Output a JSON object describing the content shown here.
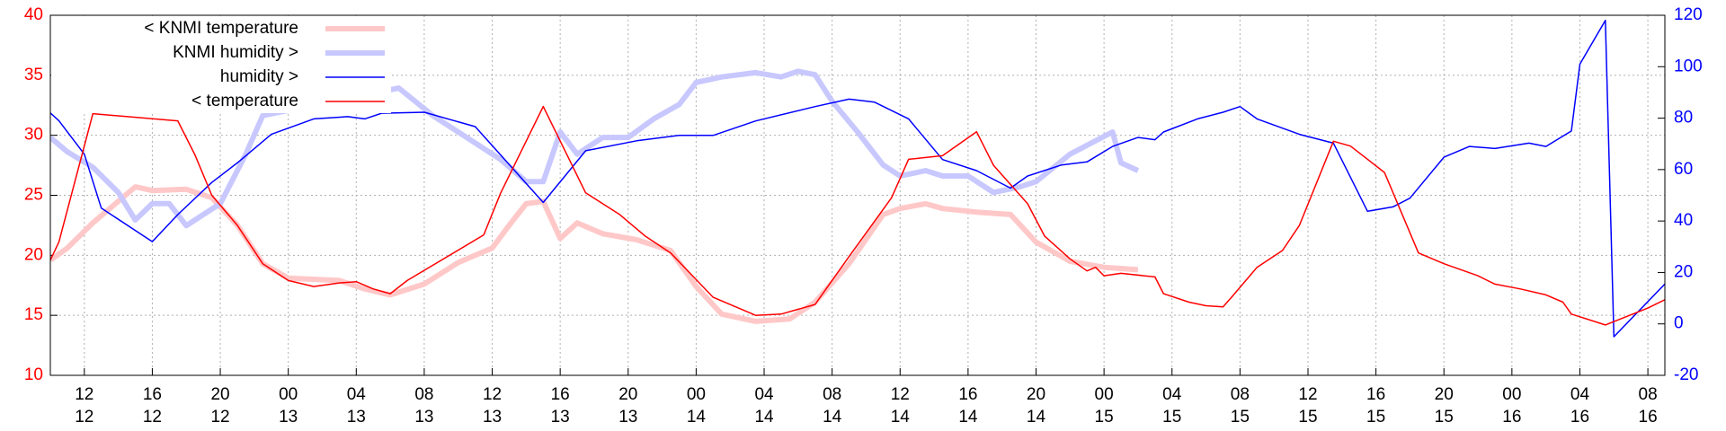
{
  "chart_data": {
    "type": "line",
    "grid": true,
    "legend": "top-left",
    "ycolor": "#ff0000",
    "y2color": "#0000ff",
    "xlim": [
      "12 10:00",
      "16 09:00"
    ],
    "xticks": [
      {
        "value": "12 12:00",
        "label": "12\n12"
      },
      {
        "value": "12 16:00",
        "label": "16\n12"
      },
      {
        "value": "12 20:00",
        "label": "20\n12"
      },
      {
        "value": "13 00:00",
        "label": "00\n13"
      },
      {
        "value": "13 04:00",
        "label": "04\n13"
      },
      {
        "value": "13 08:00",
        "label": "08\n13"
      },
      {
        "value": "13 12:00",
        "label": "12\n13"
      },
      {
        "value": "13 16:00",
        "label": "16\n13"
      },
      {
        "value": "13 20:00",
        "label": "20\n13"
      },
      {
        "value": "14 00:00",
        "label": "00\n14"
      },
      {
        "value": "14 04:00",
        "label": "04\n14"
      },
      {
        "value": "14 08:00",
        "label": "08\n14"
      },
      {
        "value": "14 12:00",
        "label": "12\n14"
      },
      {
        "value": "14 16:00",
        "label": "16\n14"
      },
      {
        "value": "14 20:00",
        "label": "20\n14"
      },
      {
        "value": "15 00:00",
        "label": "00\n15"
      },
      {
        "value": "15 04:00",
        "label": "04\n15"
      },
      {
        "value": "15 08:00",
        "label": "08\n15"
      },
      {
        "value": "15 12:00",
        "label": "12\n15"
      },
      {
        "value": "15 16:00",
        "label": "16\n15"
      },
      {
        "value": "15 20:00",
        "label": "20\n15"
      },
      {
        "value": "16 00:00",
        "label": "00\n16"
      },
      {
        "value": "16 04:00",
        "label": "04\n16"
      },
      {
        "value": "16 08:00",
        "label": "08\n16"
      }
    ],
    "ylim": [
      10,
      40
    ],
    "yticks": [
      10,
      15,
      20,
      25,
      30,
      35,
      40
    ],
    "y2lim": [
      -20,
      120
    ],
    "y2ticks": [
      -20,
      0,
      20,
      40,
      60,
      80,
      100,
      120
    ],
    "series": [
      {
        "name": "< KNMI temperature",
        "color": "#ffc8c8",
        "width": 6,
        "x": [
          "12 10:00",
          "12 11:00",
          "12 12:30",
          "12 13:30",
          "12 15:00",
          "12 16:00",
          "12 18:00",
          "12 19:30",
          "12 21:00",
          "12 22:30",
          "13 00:00",
          "13 03:00",
          "13 04:30",
          "13 06:00",
          "13 08:00",
          "13 10:00",
          "13 12:00",
          "13 13:00",
          "13 14:00",
          "13 15:00",
          "13 16:00",
          "13 17:00",
          "13 18:30",
          "13 20:30",
          "13 22:30",
          "14 00:00",
          "14 01:30",
          "14 03:30",
          "14 05:30",
          "14 07:00",
          "14 09:00",
          "14 11:00",
          "14 12:00",
          "14 13:30",
          "14 14:30",
          "14 16:30",
          "14 18:30",
          "14 20:00",
          "14 22:00",
          "15 00:00",
          "15 02:00"
        ],
        "values": [
          19.6,
          20.6,
          22.7,
          23.9,
          25.7,
          25.4,
          25.5,
          24.8,
          22.5,
          19.3,
          18.1,
          17.9,
          17.2,
          16.7,
          17.6,
          19.4,
          20.6,
          22.5,
          24.3,
          24.5,
          21.4,
          22.7,
          21.8,
          21.3,
          20.4,
          17.4,
          15.1,
          14.5,
          14.7,
          16.1,
          19.3,
          23.4,
          23.9,
          24.3,
          23.9,
          23.6,
          23.4,
          21.1,
          19.5,
          19.0,
          18.8
        ]
      },
      {
        "name": "KNMI humidity >",
        "color": "#c8c8ff",
        "width": 6,
        "axis": "y2",
        "x": [
          "12 10:00",
          "12 11:00",
          "12 12:30",
          "12 14:00",
          "12 15:00",
          "12 16:00",
          "12 17:00",
          "12 18:00",
          "12 20:00",
          "12 21:30",
          "12 22:30",
          "13 06:30",
          "13 08:30",
          "13 10:30",
          "13 12:30",
          "13 14:00",
          "13 15:00",
          "13 16:00",
          "13 17:00",
          "13 18:30",
          "13 20:00",
          "13 21:30",
          "13 23:00",
          "14 00:00",
          "14 01:30",
          "14 03:30",
          "14 05:00",
          "14 06:00",
          "14 07:00",
          "14 08:00",
          "14 09:30",
          "14 11:00",
          "14 12:00",
          "14 13:30",
          "14 14:30",
          "14 16:00",
          "14 17:30",
          "14 19:00",
          "14 20:00",
          "14 22:00",
          "14 23:30",
          "15 00:30",
          "15 01:00",
          "15 02:00"
        ],
        "values": [
          72.5,
          66.9,
          60.9,
          51.1,
          40.4,
          46.8,
          46.8,
          38.2,
          46.8,
          66,
          81,
          91.7,
          81,
          72.5,
          63.9,
          55.3,
          55.3,
          74.6,
          66,
          72.5,
          72.5,
          79.7,
          85.3,
          93.9,
          96,
          97.7,
          96,
          98.2,
          96.9,
          86.6,
          74.6,
          61.8,
          57.5,
          59.6,
          57.5,
          57.5,
          51.1,
          53.2,
          55.3,
          66,
          71.2,
          74.6,
          62.6,
          59.6
        ]
      },
      {
        "name": "humidity >",
        "color": "#0000ff",
        "width": 1.5,
        "axis": "y2",
        "x": [
          "12 10:00",
          "12 10:30",
          "12 12:00",
          "12 13:00",
          "12 16:00",
          "12 17:30",
          "12 19:30",
          "12 21:00",
          "12 23:00",
          "13 01:30",
          "13 03:30",
          "13 04:30",
          "13 05:30",
          "13 08:00",
          "13 11:00",
          "13 15:00",
          "13 17:30",
          "13 20:30",
          "13 23:00",
          "14 01:00",
          "14 03:30",
          "14 07:00",
          "14 09:00",
          "14 10:30",
          "14 12:30",
          "14 14:30",
          "14 16:30",
          "14 18:30",
          "14 19:30",
          "14 21:30",
          "14 23:00",
          "15 00:30",
          "15 02:00",
          "15 03:00",
          "15 03:30",
          "15 05:30",
          "15 07:00",
          "15 08:00",
          "15 09:00",
          "15 11:30",
          "15 13:30",
          "15 15:30",
          "15 17:00",
          "15 18:00",
          "15 20:00",
          "15 21:30",
          "15 23:00",
          "16 01:00",
          "16 02:00",
          "16 03:30",
          "16 04:00",
          "16 05:30",
          "16 06:00",
          "16 09:00"
        ],
        "values": [
          82,
          79,
          66,
          45,
          32,
          42.5,
          55,
          62.6,
          73.7,
          79.7,
          80.6,
          79.7,
          81.9,
          82.3,
          76.7,
          47.2,
          67.3,
          71.2,
          73.3,
          73.3,
          78.9,
          84.5,
          87.4,
          86.2,
          79.7,
          63.9,
          59.6,
          52.8,
          57.5,
          61.8,
          63,
          69,
          72.5,
          71.6,
          74.6,
          79.7,
          82.3,
          84.5,
          79.7,
          73.7,
          70.3,
          43.8,
          45.5,
          48.9,
          64.8,
          69,
          68.2,
          70.3,
          69,
          75,
          101,
          118,
          -5,
          15.5
        ]
      },
      {
        "name": "< temperature",
        "color": "#ff0000",
        "width": 1.5,
        "x": [
          "12 10:00",
          "12 10:30",
          "12 12:30",
          "12 17:30",
          "12 18:30",
          "12 19:30",
          "12 21:00",
          "12 22:30",
          "13 00:00",
          "13 01:30",
          "13 03:00",
          "13 04:00",
          "13 05:00",
          "13 06:00",
          "13 07:00",
          "13 11:30",
          "13 12:30",
          "13 15:00",
          "13 17:30",
          "13 19:30",
          "13 21:00",
          "13 22:30",
          "14 01:00",
          "14 03:30",
          "14 05:00",
          "14 07:00",
          "14 09:00",
          "14 11:30",
          "14 12:30",
          "14 14:30",
          "14 16:30",
          "14 17:30",
          "14 19:30",
          "14 20:30",
          "14 22:00",
          "14 23:00",
          "14 23:30",
          "15 00:00",
          "15 01:00",
          "15 03:00",
          "15 03:30",
          "15 05:00",
          "15 06:00",
          "15 07:00",
          "15 07:30",
          "15 09:00",
          "15 10:30",
          "15 11:30",
          "15 13:30",
          "15 14:30",
          "15 16:30",
          "15 18:30",
          "15 20:00",
          "15 22:00",
          "15 23:00",
          "16 00:30",
          "16 02:00",
          "16 03:00",
          "16 03:30",
          "16 05:30",
          "16 08:00",
          "16 09:00"
        ],
        "values": [
          19.6,
          21.1,
          31.8,
          31.2,
          28.4,
          25.0,
          22.5,
          19.3,
          17.9,
          17.4,
          17.7,
          17.8,
          17.2,
          16.8,
          17.9,
          21.7,
          25.2,
          32.4,
          25.2,
          23.4,
          21.6,
          20.2,
          16.5,
          15.0,
          15.1,
          15.9,
          19.9,
          24.8,
          28.0,
          28.3,
          30.3,
          27.5,
          24.3,
          21.6,
          19.7,
          18.7,
          19.0,
          18.3,
          18.5,
          18.2,
          16.8,
          16.1,
          15.8,
          15.7,
          16.5,
          19.0,
          20.4,
          22.5,
          29.5,
          29.1,
          26.9,
          20.2,
          19.3,
          18.3,
          17.6,
          17.2,
          16.7,
          16.1,
          15.1,
          14.2,
          15.6,
          16.3
        ]
      }
    ]
  }
}
